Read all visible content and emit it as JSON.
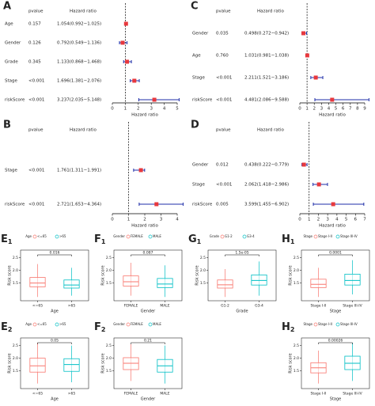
{
  "chart_data": [
    {
      "type": "forest",
      "label": "A",
      "col_headers": [
        "pvalue",
        "Hazard ratio"
      ],
      "xlabel": "Hazard ratio",
      "categories": [
        "Age",
        "Gender",
        "Grade",
        "Stage",
        "riskScore"
      ],
      "pvalues": [
        "0.157",
        "0.126",
        "0.345",
        "<0.001",
        "<0.001"
      ],
      "values": [
        1.054,
        0.792,
        1.133,
        1.696,
        3.237
      ],
      "lower": [
        0.992,
        0.549,
        0.868,
        1.381,
        2.035
      ],
      "upper": [
        1.025,
        1.136,
        1.468,
        2.076,
        5.148
      ],
      "value_labels": [
        "1.054(0.992−1.025)",
        "0.792(0.549−1.136)",
        "1.133(0.868−1.468)",
        "1.696(1.381−2.076)",
        "3.237(2.035−5.148)"
      ],
      "xlim": [
        0,
        5
      ],
      "xticks": [
        0,
        1,
        2,
        3,
        4,
        5
      ],
      "marker_color": "#e8383d",
      "ci_color": "#1f2ea8"
    },
    {
      "type": "forest",
      "label": "B",
      "col_headers": [
        "pvalue",
        "Hazard ratio"
      ],
      "xlabel": "Hazard ratio",
      "categories": [
        "Stage",
        "riskScore"
      ],
      "pvalues": [
        "<0.001",
        "<0.001"
      ],
      "values": [
        1.761,
        2.721
      ],
      "lower": [
        1.311,
        1.653
      ],
      "upper": [
        1.991,
        4.364
      ],
      "value_labels": [
        "1.761(1.311−1.991)",
        "2.721(1.653−4.364)"
      ],
      "xlim": [
        0,
        4
      ],
      "xticks": [
        0,
        1,
        2,
        3,
        4
      ],
      "marker_color": "#e8383d",
      "ci_color": "#1f2ea8"
    },
    {
      "type": "forest",
      "label": "C",
      "col_headers": [
        "pvalue",
        "Hazard ratio"
      ],
      "xlabel": "Hazard ratio",
      "categories": [
        "Gender",
        "Age",
        "Stage",
        "riskScore"
      ],
      "pvalues": [
        "0.035",
        "0.760",
        "<0.001",
        "<0.001"
      ],
      "values": [
        0.498,
        1.031,
        2.211,
        4.481
      ],
      "lower": [
        0.272,
        0.981,
        1.521,
        2.086
      ],
      "upper": [
        0.942,
        1.038,
        3.186,
        9.588
      ],
      "value_labels": [
        "0.498(0.272−0.942)",
        "1.031(0.981−1.038)",
        "2.211(1.521−3.186)",
        "4.481(2.086−9.588)"
      ],
      "xlim": [
        0,
        9
      ],
      "xticks": [
        0,
        1,
        2,
        3,
        4,
        5,
        6,
        7,
        8,
        9
      ],
      "marker_color": "#e8383d",
      "ci_color": "#1f2ea8"
    },
    {
      "type": "forest",
      "label": "D",
      "col_headers": [
        "pvalue",
        "Hazard ratio"
      ],
      "xlabel": "Hazard ratio",
      "categories": [
        "Gender",
        "Stage",
        "riskScore"
      ],
      "pvalues": [
        "0.012",
        "<0.001",
        "0.005"
      ],
      "values": [
        0.438,
        2.062,
        3.599
      ],
      "lower": [
        0.222,
        1.418,
        1.455
      ],
      "upper": [
        0.779,
        2.986,
        6.902
      ],
      "value_labels": [
        "0.438(0.222−0.779)",
        "2.062(1.418−2.986)",
        "3.599(1.455−6.902)"
      ],
      "xlim": [
        0,
        7
      ],
      "xticks": [
        0,
        1,
        2,
        3,
        4,
        5,
        6,
        7
      ],
      "marker_color": "#e8383d",
      "ci_color": "#1f2ea8"
    },
    {
      "type": "box",
      "label": "E",
      "label_sub": "1",
      "legend_title": "Age",
      "categories": [
        "<=65",
        ">65"
      ],
      "colors": [
        "#f8766d",
        "#00bfc4"
      ],
      "p_value": "0.016",
      "xlabel": "Age",
      "ylabel": "Risk score",
      "min": [
        0.95,
        1.0
      ],
      "q1": [
        1.35,
        1.3
      ],
      "median": [
        1.5,
        1.42
      ],
      "q3": [
        1.72,
        1.62
      ],
      "max": [
        2.25,
        2.1
      ],
      "ylim": [
        0.8,
        2.8
      ],
      "yticks": [
        {
          "value": 1.5,
          "label": "1.5"
        },
        {
          "value": 2.0,
          "label": "2.0"
        },
        {
          "value": 2.5,
          "label": "2.5"
        }
      ]
    },
    {
      "type": "box",
      "label": "F",
      "label_sub": "1",
      "legend_title": "Gender",
      "categories": [
        "FEMALE",
        "MALE"
      ],
      "colors": [
        "#f8766d",
        "#00bfc4"
      ],
      "p_value": "0.087",
      "xlabel": "Gender",
      "ylabel": "Risk score",
      "min": [
        1.0,
        0.95
      ],
      "q1": [
        1.38,
        1.32
      ],
      "median": [
        1.55,
        1.46
      ],
      "q3": [
        1.78,
        1.68
      ],
      "max": [
        2.3,
        2.2
      ],
      "ylim": [
        0.8,
        2.8
      ],
      "yticks": [
        {
          "value": 1.5,
          "label": "1.5"
        },
        {
          "value": 2.0,
          "label": "2.0"
        },
        {
          "value": 2.5,
          "label": "2.5"
        }
      ]
    },
    {
      "type": "box",
      "label": "G",
      "label_sub": "1",
      "legend_title": "Grade",
      "categories": [
        "G1-2",
        "G3-4"
      ],
      "colors": [
        "#f8766d",
        "#00bfc4"
      ],
      "p_value": "1.5e-05",
      "xlabel": "Grade",
      "ylabel": "Risk score",
      "min": [
        0.95,
        1.0
      ],
      "q1": [
        1.3,
        1.42
      ],
      "median": [
        1.43,
        1.6
      ],
      "q3": [
        1.62,
        1.82
      ],
      "max": [
        2.05,
        2.35
      ],
      "ylim": [
        0.8,
        2.8
      ],
      "yticks": [
        {
          "value": 1.5,
          "label": "1.5"
        },
        {
          "value": 2.0,
          "label": "2.0"
        },
        {
          "value": 2.5,
          "label": "2.5"
        }
      ]
    },
    {
      "type": "box",
      "label": "H",
      "label_sub": "1",
      "legend_title": "Stage",
      "categories": [
        "Stage I-II",
        "Stage III-IV"
      ],
      "colors": [
        "#f8766d",
        "#00bfc4"
      ],
      "p_value": "0.0001",
      "xlabel": "Stage",
      "ylabel": "Risk score",
      "min": [
        0.95,
        1.05
      ],
      "q1": [
        1.32,
        1.42
      ],
      "median": [
        1.45,
        1.6
      ],
      "q3": [
        1.65,
        1.85
      ],
      "max": [
        2.1,
        2.4
      ],
      "ylim": [
        0.8,
        2.8
      ],
      "yticks": [
        {
          "value": 1.5,
          "label": "1.5"
        },
        {
          "value": 2.0,
          "label": "2.0"
        },
        {
          "value": 2.5,
          "label": "2.5"
        }
      ]
    },
    {
      "type": "box",
      "label": "E",
      "label_sub": "2",
      "legend_title": "Age",
      "categories": [
        "<=65",
        ">65"
      ],
      "colors": [
        "#f8766d",
        "#00bfc4"
      ],
      "p_value": "0.05",
      "xlabel": "Age",
      "ylabel": "Risk score",
      "min": [
        1.0,
        1.05
      ],
      "q1": [
        1.45,
        1.48
      ],
      "median": [
        1.7,
        1.75
      ],
      "q3": [
        2.0,
        1.98
      ],
      "max": [
        2.6,
        2.5
      ],
      "ylim": [
        0.8,
        2.8
      ],
      "yticks": [
        {
          "value": 1.5,
          "label": "1.5"
        },
        {
          "value": 2.0,
          "label": "2.0"
        },
        {
          "value": 2.5,
          "label": "2.5"
        }
      ]
    },
    {
      "type": "box",
      "label": "F",
      "label_sub": "2",
      "legend_title": "Gender",
      "categories": [
        "FEMALE",
        "MALE"
      ],
      "colors": [
        "#f8766d",
        "#00bfc4"
      ],
      "p_value": "0.21",
      "xlabel": "Gender",
      "ylabel": "Risk score",
      "min": [
        1.1,
        1.0
      ],
      "q1": [
        1.55,
        1.45
      ],
      "median": [
        1.8,
        1.7
      ],
      "q3": [
        2.02,
        1.95
      ],
      "max": [
        2.55,
        2.5
      ],
      "ylim": [
        0.8,
        2.8
      ],
      "yticks": [
        {
          "value": 1.5,
          "label": "1.5"
        },
        {
          "value": 2.0,
          "label": "2.0"
        },
        {
          "value": 2.5,
          "label": "2.5"
        }
      ]
    },
    {
      "type": "box",
      "label": "H",
      "label_sub": "2",
      "legend_title": "Stage",
      "categories": [
        "Stage I-II",
        "Stage III-IV"
      ],
      "colors": [
        "#f8766d",
        "#00bfc4"
      ],
      "p_value": "0.00026",
      "xlabel": "Stage",
      "ylabel": "Risk score",
      "min": [
        1.0,
        1.1
      ],
      "q1": [
        1.42,
        1.55
      ],
      "median": [
        1.62,
        1.8
      ],
      "q3": [
        1.82,
        2.08
      ],
      "max": [
        2.3,
        2.6
      ],
      "ylim": [
        0.8,
        2.8
      ],
      "yticks": [
        {
          "value": 1.5,
          "label": "1.5"
        },
        {
          "value": 2.0,
          "label": "2.0"
        },
        {
          "value": 2.5,
          "label": "2.5"
        }
      ]
    }
  ]
}
